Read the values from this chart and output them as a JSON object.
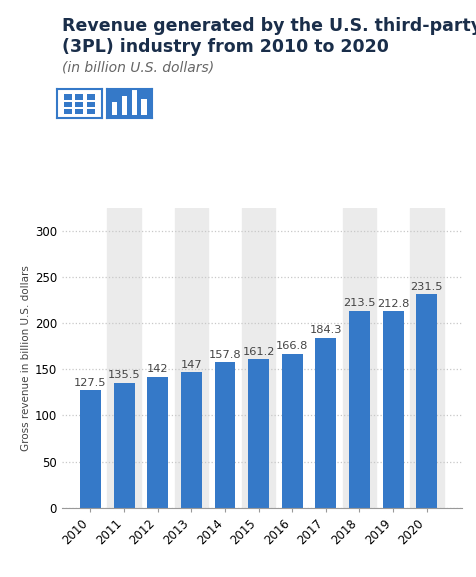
{
  "title_line1": "Revenue generated by the U.S. third-party logistics",
  "title_line2": "(3PL) industry from 2010 to 2020",
  "subtitle": "(in billion U.S. dollars)",
  "ylabel": "Gross revenue in billion U.S. dollars",
  "years": [
    "2010",
    "2011",
    "2012",
    "2013",
    "2014",
    "2015",
    "2016",
    "2017",
    "2018",
    "2019",
    "2020"
  ],
  "values": [
    127.5,
    135.5,
    142,
    147,
    157.8,
    161.2,
    166.8,
    184.3,
    213.5,
    212.8,
    231.5
  ],
  "bar_color": "#3579c8",
  "bg_color": "#ffffff",
  "grid_color": "#c8c8c8",
  "label_color": "#444444",
  "title_color": "#1a2e4a",
  "subtitle_color": "#666666",
  "band_color": "#ebebeb",
  "ylim": [
    0,
    325
  ],
  "yticks": [
    0,
    50,
    100,
    150,
    200,
    250,
    300
  ],
  "bar_width": 0.62,
  "title_fontsize": 12.5,
  "subtitle_fontsize": 10,
  "label_fontsize": 8.2,
  "tick_fontsize": 8.5,
  "ylabel_fontsize": 7.5,
  "band_indices": [
    1,
    3,
    5,
    8,
    10
  ]
}
